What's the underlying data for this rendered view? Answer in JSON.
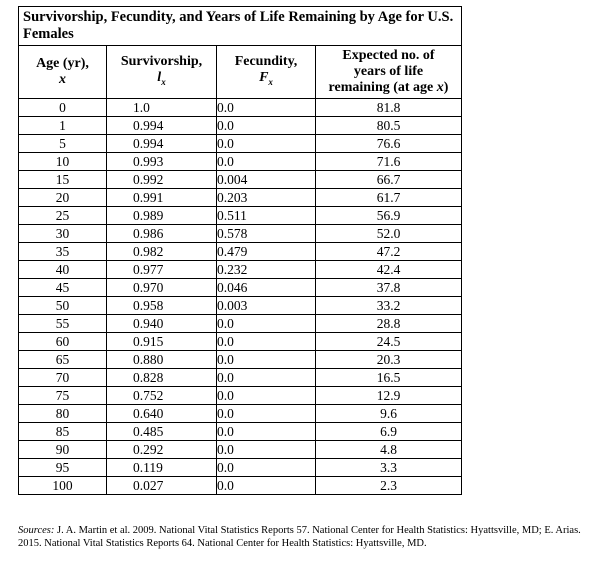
{
  "title": "Survivorship, Fecundity, and Years of Life Remaining by Age for U.S. Females",
  "headers": {
    "age": {
      "label": "Age (yr),",
      "symbol": "x"
    },
    "survivorship": {
      "label": "Survivorship,",
      "symbol": "l",
      "sub": "x"
    },
    "fecundity": {
      "label": "Fecundity,",
      "symbol": "F",
      "sub": "x"
    },
    "expected": {
      "line1": "Expected no. of",
      "line2": "years of life",
      "line3": "remaining (at age ",
      "symbol": "x",
      "close": ")"
    }
  },
  "rows": [
    [
      "0",
      "1.0",
      "0.0",
      "81.8"
    ],
    [
      "1",
      "0.994",
      "0.0",
      "80.5"
    ],
    [
      "5",
      "0.994",
      "0.0",
      "76.6"
    ],
    [
      "10",
      "0.993",
      "0.0",
      "71.6"
    ],
    [
      "15",
      "0.992",
      "0.004",
      "66.7"
    ],
    [
      "20",
      "0.991",
      "0.203",
      "61.7"
    ],
    [
      "25",
      "0.989",
      "0.511",
      "56.9"
    ],
    [
      "30",
      "0.986",
      "0.578",
      "52.0"
    ],
    [
      "35",
      "0.982",
      "0.479",
      "47.2"
    ],
    [
      "40",
      "0.977",
      "0.232",
      "42.4"
    ],
    [
      "45",
      "0.970",
      "0.046",
      "37.8"
    ],
    [
      "50",
      "0.958",
      "0.003",
      "33.2"
    ],
    [
      "55",
      "0.940",
      "0.0",
      "28.8"
    ],
    [
      "60",
      "0.915",
      "0.0",
      "24.5"
    ],
    [
      "65",
      "0.880",
      "0.0",
      "20.3"
    ],
    [
      "70",
      "0.828",
      "0.0",
      "16.5"
    ],
    [
      "75",
      "0.752",
      "0.0",
      "12.9"
    ],
    [
      "80",
      "0.640",
      "0.0",
      "9.6"
    ],
    [
      "85",
      "0.485",
      "0.0",
      "6.9"
    ],
    [
      "90",
      "0.292",
      "0.0",
      "4.8"
    ],
    [
      "95",
      "0.119",
      "0.0",
      "3.3"
    ],
    [
      "100",
      "0.027",
      "0.0",
      "2.3"
    ]
  ],
  "sources": {
    "label": "Sources:",
    "text": " J. A. Martin et al. 2009. National Vital Statistics Reports 57. National Center for Health Statistics: Hyattsville, MD; E. Arias. 2015. National Vital Statistics Reports 64. National Center for Health Statistics: Hyattsville, MD."
  }
}
